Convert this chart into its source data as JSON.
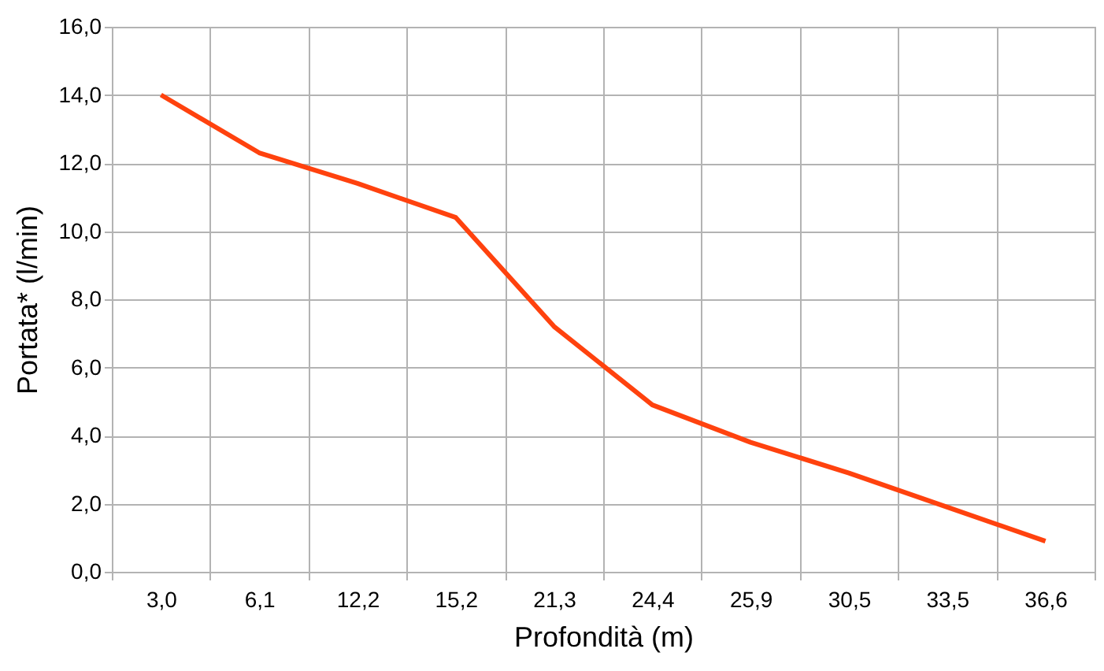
{
  "chart_data": {
    "type": "line",
    "xlabel": "Profondità (m)",
    "ylabel": "Portata* (l/min)",
    "categories": [
      "3,0",
      "6,1",
      "12,2",
      "15,2",
      "21,3",
      "24,4",
      "25,9",
      "30,5",
      "33,5",
      "36,6"
    ],
    "series": [
      {
        "color": "#ff420e",
        "values": [
          14.0,
          12.3,
          11.4,
          10.4,
          7.2,
          4.9,
          3.8,
          2.9,
          1.9,
          0.9
        ]
      }
    ],
    "ylim": [
      0,
      16
    ],
    "yticks": [
      {
        "value": 0,
        "label": "0,0"
      },
      {
        "value": 2,
        "label": "2,0"
      },
      {
        "value": 4,
        "label": "4,0"
      },
      {
        "value": 6,
        "label": "6,0"
      },
      {
        "value": 8,
        "label": "8,0"
      },
      {
        "value": 10,
        "label": "10,0"
      },
      {
        "value": 12,
        "label": "12,0"
      },
      {
        "value": 14,
        "label": "14,0"
      },
      {
        "value": 16,
        "label": "16,0"
      }
    ],
    "grid": true,
    "marker": "none",
    "line_style": "solid"
  }
}
